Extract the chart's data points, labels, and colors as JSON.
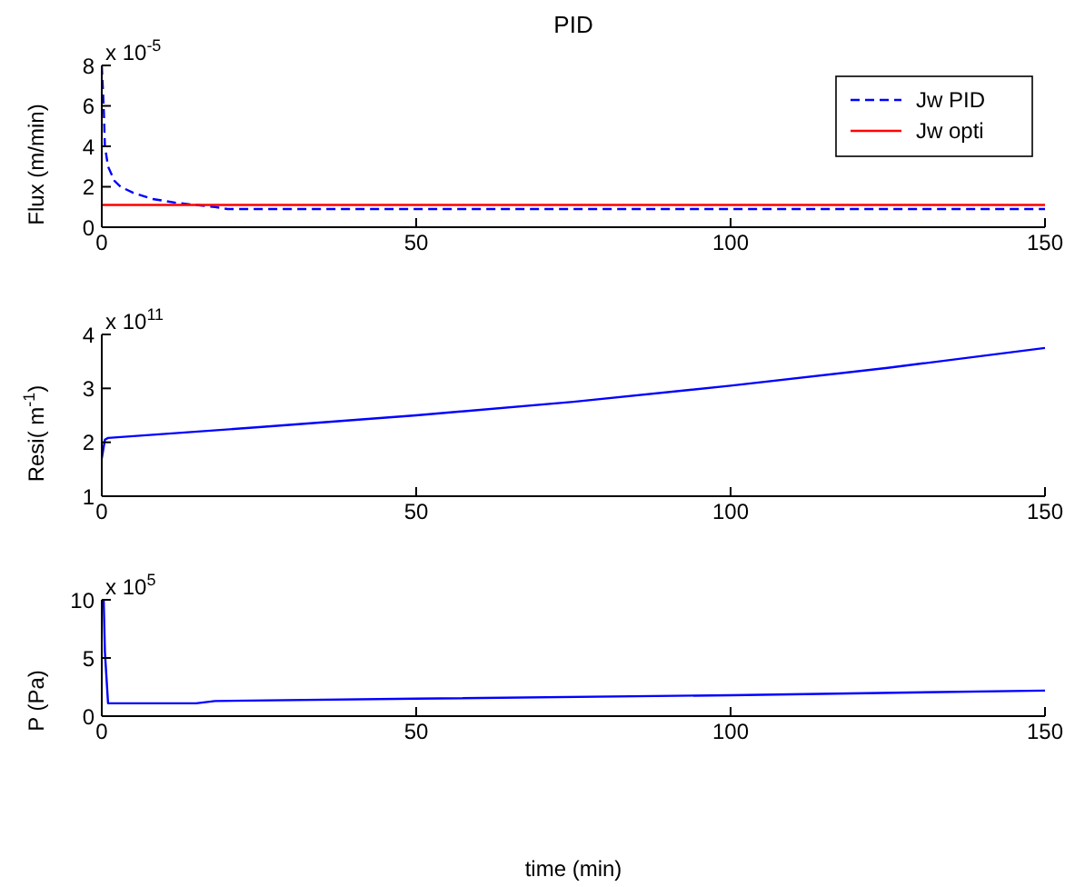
{
  "chart_data": [
    {
      "type": "line",
      "title": "PID",
      "ylabel": "Flux  (m/min)",
      "annotations": [
        "x 10$^{-5}$"
      ],
      "xlim": [
        0,
        150
      ],
      "xticks": [
        0,
        50,
        100,
        150
      ],
      "ylim": [
        0,
        8
      ],
      "yticks": [
        0,
        2,
        4,
        6,
        8
      ],
      "grid": false,
      "legend": "top right",
      "marker": "none",
      "series": [
        {
          "name": "Jw PID",
          "color": "#0000ff",
          "line_style": "dashed",
          "x": [
            0,
            0.3,
            0.5,
            1,
            2,
            3,
            5,
            8,
            12,
            15,
            18,
            20,
            50,
            100,
            150
          ],
          "values": [
            8,
            6,
            4,
            3,
            2.3,
            2,
            1.7,
            1.4,
            1.2,
            1.1,
            1.0,
            0.9,
            0.9,
            0.9,
            0.9
          ]
        },
        {
          "name": "Jw opti",
          "color": "#ff0000",
          "line_style": "solid",
          "x": [
            0,
            150
          ],
          "values": [
            1.1,
            1.1
          ]
        }
      ]
    },
    {
      "type": "line",
      "ylabel": "Resi( m$^{-1}$)",
      "annotations": [
        "x 10$^{11}$"
      ],
      "xlim": [
        0,
        150
      ],
      "xticks": [
        0,
        50,
        100,
        150
      ],
      "ylim": [
        1,
        4
      ],
      "yticks": [
        1,
        2,
        3,
        4
      ],
      "grid": false,
      "marker": "none",
      "series": [
        {
          "color": "#0000ff",
          "line_style": "solid",
          "x": [
            0,
            0.5,
            1,
            25,
            50,
            75,
            100,
            125,
            150
          ],
          "values": [
            1.7,
            2.05,
            2.08,
            2.28,
            2.5,
            2.75,
            3.05,
            3.38,
            3.75
          ]
        }
      ]
    },
    {
      "type": "line",
      "ylabel": "P (Pa)",
      "xlabel": "time (min)",
      "annotations": [
        "x 10$^{5}$"
      ],
      "xlim": [
        0,
        150
      ],
      "xticks": [
        0,
        50,
        100,
        150
      ],
      "ylim": [
        0,
        10
      ],
      "yticks": [
        0,
        5,
        10
      ],
      "grid": false,
      "marker": "none",
      "series": [
        {
          "color": "#0000ff",
          "line_style": "solid",
          "x": [
            0,
            0.3,
            0.5,
            1,
            15,
            18,
            50,
            100,
            150
          ],
          "values": [
            10,
            10,
            5.5,
            1.1,
            1.1,
            1.3,
            1.5,
            1.8,
            2.2
          ]
        }
      ]
    }
  ]
}
